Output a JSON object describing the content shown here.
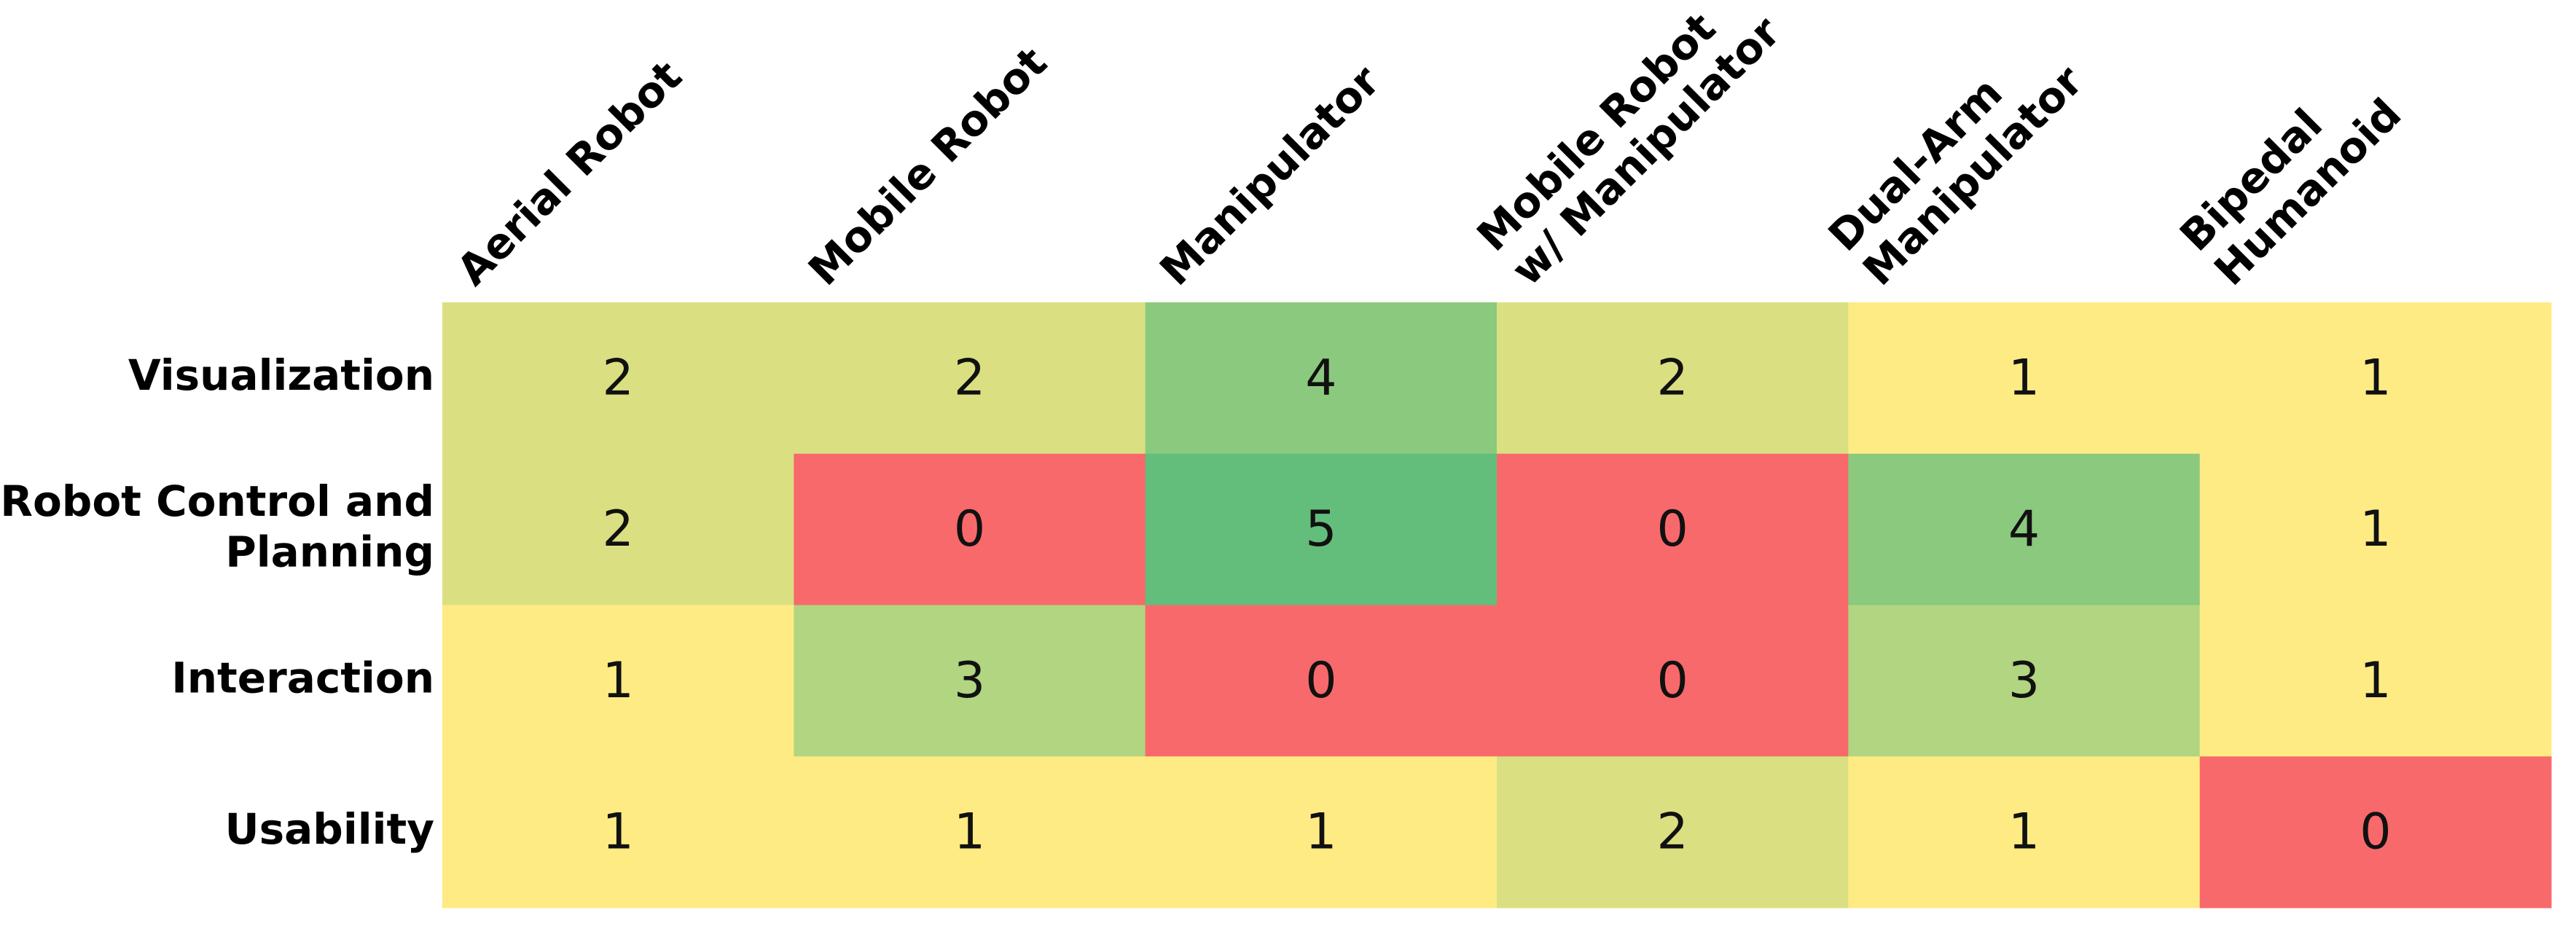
{
  "chart_data": {
    "type": "heatmap",
    "columns": [
      "Aerial Robot",
      "Mobile Robot",
      "Manipulator",
      "Mobile Robot\nw/ Manipulator",
      "Dual-Arm\nManipulator",
      "Bipedal\nHumanoid"
    ],
    "rows": [
      "Visualization",
      "Robot Control and\nPlanning",
      "Interaction",
      "Usability"
    ],
    "values": [
      [
        2,
        2,
        4,
        2,
        1,
        1
      ],
      [
        2,
        0,
        5,
        0,
        4,
        1
      ],
      [
        1,
        3,
        0,
        0,
        3,
        1
      ],
      [
        1,
        1,
        1,
        2,
        1,
        0
      ]
    ],
    "colorscale": [
      "#f8696b",
      "#ffeb84",
      "#dae081",
      "#b1d580",
      "#8ac97e",
      "#63be7b"
    ]
  }
}
